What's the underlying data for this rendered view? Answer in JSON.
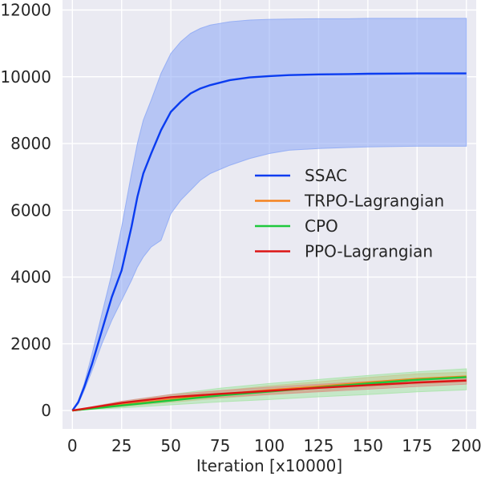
{
  "chart_data": {
    "type": "line",
    "title": "",
    "xlabel": "Iteration [x10000]",
    "ylabel": "",
    "xlim": [
      -5,
      205
    ],
    "ylim": [
      -550,
      12300
    ],
    "xticks": [
      0,
      25,
      50,
      75,
      100,
      125,
      150,
      175,
      200
    ],
    "yticks": [
      0,
      2000,
      4000,
      6000,
      8000,
      10000,
      12000
    ],
    "grid": true,
    "legend_position": "center-right",
    "series": [
      {
        "name": "SSAC",
        "color": "#0a3cf0",
        "band_color": "#8aa6f5",
        "x": [
          0,
          3,
          6,
          10,
          15,
          20,
          25,
          30,
          33,
          36,
          40,
          45,
          50,
          55,
          60,
          65,
          70,
          80,
          90,
          100,
          110,
          125,
          140,
          150,
          175,
          200
        ],
        "y": [
          0,
          250,
          700,
          1400,
          2400,
          3400,
          4200,
          5500,
          6400,
          7100,
          7700,
          8400,
          8950,
          9250,
          9500,
          9650,
          9750,
          9900,
          9980,
          10020,
          10050,
          10070,
          10080,
          10090,
          10100,
          10100
        ],
        "upper": [
          0,
          300,
          800,
          1700,
          2900,
          4100,
          5500,
          7100,
          8000,
          8700,
          9300,
          10100,
          10700,
          11050,
          11300,
          11450,
          11550,
          11650,
          11700,
          11720,
          11730,
          11740,
          11740,
          11750,
          11750,
          11750
        ],
        "lower": [
          0,
          200,
          600,
          1200,
          2000,
          2700,
          3300,
          3900,
          4300,
          4600,
          4900,
          5100,
          5900,
          6300,
          6600,
          6900,
          7100,
          7350,
          7550,
          7700,
          7800,
          7850,
          7880,
          7900,
          7920,
          7920
        ]
      },
      {
        "name": "TRPO-Lagrangian",
        "color": "#f5821e",
        "band_color": "#e8a878",
        "x": [
          0,
          25,
          50,
          75,
          100,
          125,
          150,
          175,
          200
        ],
        "y": [
          0,
          170,
          330,
          480,
          610,
          720,
          840,
          950,
          1020
        ],
        "upper": [
          0,
          220,
          420,
          590,
          740,
          860,
          990,
          1100,
          1150
        ],
        "lower": [
          0,
          120,
          250,
          370,
          480,
          580,
          690,
          790,
          860
        ]
      },
      {
        "name": "CPO",
        "color": "#1ec83c",
        "band_color": "#a6e3a6",
        "x": [
          0,
          25,
          50,
          75,
          100,
          125,
          150,
          175,
          200
        ],
        "y": [
          0,
          150,
          300,
          450,
          570,
          690,
          810,
          920,
          1000
        ],
        "upper": [
          0,
          250,
          480,
          670,
          810,
          930,
          1050,
          1160,
          1250
        ],
        "lower": [
          0,
          80,
          170,
          260,
          330,
          410,
          480,
          560,
          620
        ]
      },
      {
        "name": "PPO-Lagrangian",
        "color": "#dc1414",
        "band_color": "#d9958a",
        "x": [
          0,
          25,
          50,
          75,
          100,
          125,
          150,
          175,
          200
        ],
        "y": [
          0,
          230,
          400,
          500,
          590,
          680,
          760,
          840,
          900
        ],
        "upper": [
          0,
          280,
          480,
          600,
          700,
          790,
          870,
          950,
          1000
        ],
        "lower": [
          0,
          180,
          320,
          400,
          480,
          560,
          640,
          720,
          790
        ]
      }
    ]
  }
}
